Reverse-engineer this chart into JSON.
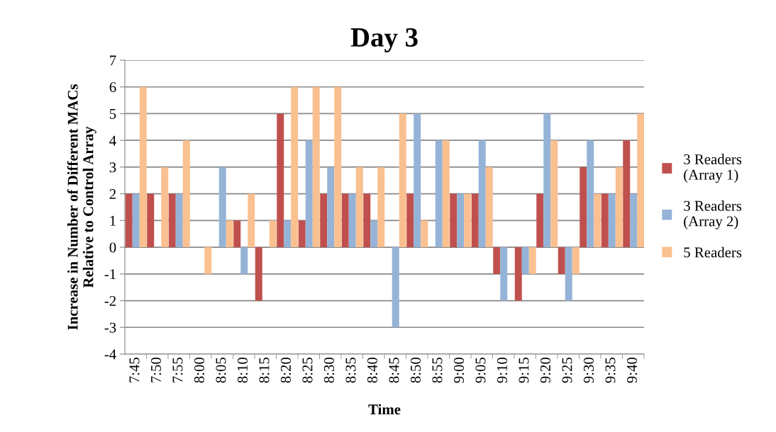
{
  "chart_data": {
    "type": "bar",
    "title": "Day 3",
    "xlabel": "Time",
    "ylabel": "Increase in Number of Different MACs\nRelative to Control Array",
    "categories": [
      "7:45",
      "7:50",
      "7:55",
      "8:00",
      "8:05",
      "8:10",
      "8:15",
      "8:20",
      "8:25",
      "8:30",
      "8:35",
      "8:40",
      "8:45",
      "8:50",
      "8:55",
      "9:00",
      "9:05",
      "9:10",
      "9:15",
      "9:20",
      "9:25",
      "9:30",
      "9:35",
      "9:40"
    ],
    "series": [
      {
        "name": "3 Readers\n(Array 1)",
        "color": "#c0504d",
        "values": [
          2,
          2,
          2,
          0,
          0,
          1,
          -2,
          5,
          1,
          2,
          2,
          2,
          0,
          2,
          0,
          2,
          2,
          -1,
          -2,
          2,
          -1,
          3,
          2,
          4
        ]
      },
      {
        "name": "3 Readers\n(Array 2)",
        "color": "#95b3d7",
        "values": [
          2,
          0,
          2,
          0,
          3,
          -1,
          0,
          1,
          4,
          3,
          2,
          1,
          -3,
          5,
          4,
          2,
          4,
          -2,
          -1,
          5,
          -2,
          4,
          2,
          2
        ]
      },
      {
        "name": "5 Readers",
        "color": "#fac090",
        "values": [
          6,
          3,
          4,
          -1,
          1,
          2,
          1,
          6,
          6,
          6,
          3,
          3,
          5,
          1,
          4,
          2,
          3,
          0,
          -1,
          4,
          -1,
          2,
          3,
          5
        ]
      }
    ],
    "ylim": [
      -4,
      7
    ],
    "yticks": [
      -4,
      -3,
      -2,
      -1,
      0,
      1,
      2,
      3,
      4,
      5,
      6,
      7
    ],
    "grid": "y",
    "legend": "right"
  }
}
